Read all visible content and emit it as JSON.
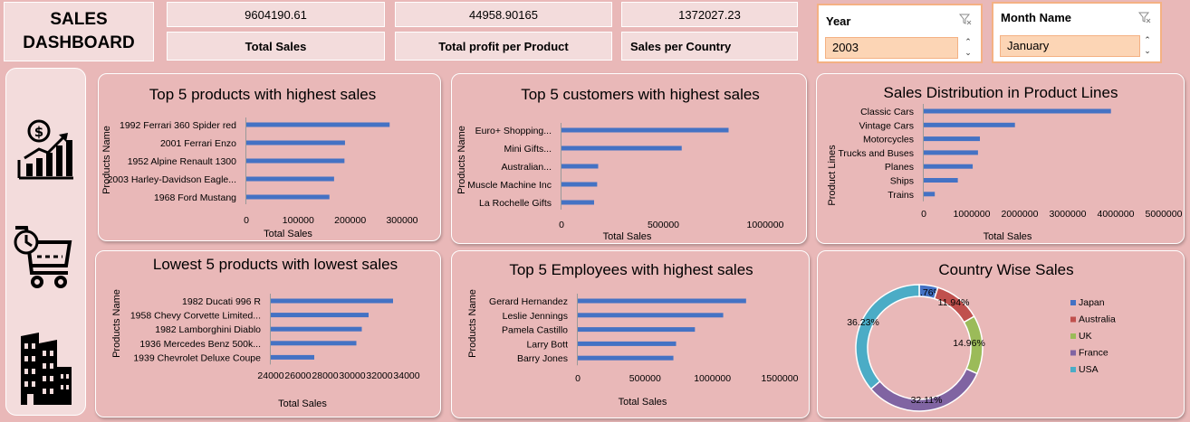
{
  "header": {
    "title_line1": "SALES",
    "title_line2": "DASHBOARD",
    "kpis": [
      {
        "value": "9604190.61",
        "label": "Total Sales"
      },
      {
        "value": "44958.90165",
        "label": "Total profit per Product"
      },
      {
        "value": "1372027.23",
        "label": "Sales per Country"
      }
    ]
  },
  "slicers": {
    "year": {
      "header": "Year",
      "selected": "2003"
    },
    "month": {
      "header": "Month Name",
      "selected": "January"
    }
  },
  "sidebar_icons": [
    "sales-growth-icon",
    "shopping-cart-icon",
    "office-buildings-icon"
  ],
  "colors": {
    "bar": "#4472c4",
    "page_bg": "#e9b8b8",
    "japan": "#4472c4",
    "australia": "#c0504d",
    "uk": "#9bbb59",
    "france": "#8064a2",
    "usa": "#4bacc6"
  },
  "chart_data": [
    {
      "type": "bar",
      "orientation": "horizontal",
      "title": "Top 5 products with highest sales",
      "xlabel": "Total Sales",
      "ylabel": "Products Name",
      "categories": [
        "1992 Ferrari 360 Spider red",
        "2001 Ferrari Enzo",
        "1952 Alpine Renault 1300",
        "2003 Harley-Davidson Eagle...",
        "1968 Ford Mustang"
      ],
      "values": [
        276000,
        190000,
        189000,
        169000,
        160000
      ],
      "xlim": [
        0,
        300000
      ],
      "xticks": [
        "0",
        "100000",
        "200000",
        "300000"
      ]
    },
    {
      "type": "bar",
      "orientation": "horizontal",
      "title": "Top 5 customers with highest sales",
      "xlabel": "Total Sales",
      "ylabel": "Products Name",
      "categories": [
        "Euro+ Shopping...",
        "Mini Gifts...",
        "Australian...",
        "Muscle Machine Inc",
        "La Rochelle Gifts"
      ],
      "values": [
        820000,
        590000,
        180000,
        175000,
        160000
      ],
      "xlim": [
        0,
        1000000
      ],
      "xticks": [
        "0",
        "500000",
        "1000000"
      ]
    },
    {
      "type": "bar",
      "orientation": "horizontal",
      "title": "Sales Distribution in Product Lines",
      "xlabel": "Total Sales",
      "ylabel": "Product Lines",
      "categories": [
        "Classic Cars",
        "Vintage Cars",
        "Motorcycles",
        "Trucks and Buses",
        "Planes",
        "Ships",
        "Trains"
      ],
      "values": [
        3900000,
        1900000,
        1170000,
        1130000,
        1020000,
        710000,
        230000
      ],
      "xlim": [
        0,
        5000000
      ],
      "xticks": [
        "0",
        "1000000",
        "2000000",
        "3000000",
        "4000000",
        "5000000"
      ]
    },
    {
      "type": "bar",
      "orientation": "horizontal",
      "title": "Lowest 5 products with lowest sales",
      "xlabel": "Total Sales",
      "ylabel": "Products Name",
      "categories": [
        "1982 Ducati 996 R",
        "1958 Chevy Corvette Limited...",
        "1982 Lamborghini Diablo",
        "1936 Mercedes Benz 500k...",
        "1939 Chevrolet Deluxe Coupe"
      ],
      "values": [
        33000,
        31200,
        30700,
        30300,
        27200
      ],
      "xlim": [
        24000,
        34000
      ],
      "xticks": [
        "24000",
        "26000",
        "28000",
        "30000",
        "32000",
        "34000"
      ]
    },
    {
      "type": "bar",
      "orientation": "horizontal",
      "title": "Top 5 Employees with highest sales",
      "xlabel": "Total Sales",
      "ylabel": "Products Name",
      "categories": [
        "Gerard Hernandez",
        "Leslie Jennings",
        "Pamela Castillo",
        "Larry Bott",
        "Barry Jones"
      ],
      "values": [
        1250000,
        1080000,
        870000,
        730000,
        710000
      ],
      "xlim": [
        0,
        1500000
      ],
      "xticks": [
        "0",
        "500000",
        "1000000",
        "1500000"
      ]
    },
    {
      "type": "pie",
      "subtype": "doughnut",
      "title": "Country Wise Sales",
      "categories": [
        "Japan",
        "Australia",
        "UK",
        "France",
        "USA"
      ],
      "values": [
        4.76,
        11.94,
        14.96,
        32.11,
        36.23
      ],
      "labels": [
        "4.76%",
        "11.94%",
        "14.96%",
        "32.11%",
        "36.23%"
      ],
      "legend_position": "right"
    }
  ]
}
